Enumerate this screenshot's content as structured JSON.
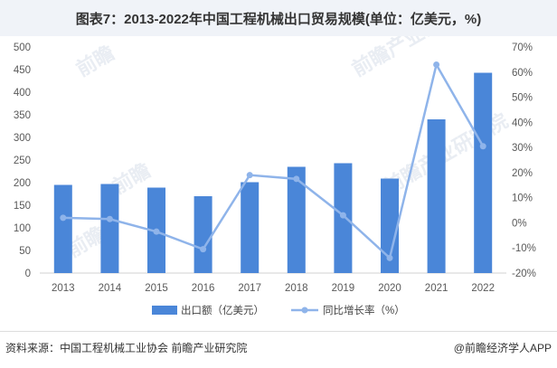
{
  "title": "图表7：2013-2022年中国工程机械出口贸易规模(单位：亿美元，%)",
  "source_text": "资料来源：中国工程机械工业协会 前瞻产业研究院",
  "brand_text": "@前瞻经济学人APP",
  "watermarks": [
    "前瞻",
    "前瞻产业研究院"
  ],
  "colors": {
    "bar": "#4a86d8",
    "line": "#8fb4ea",
    "axis": "#d0d0d0"
  },
  "chart_data": {
    "type": "bar",
    "categories": [
      "2013",
      "2014",
      "2015",
      "2016",
      "2017",
      "2018",
      "2019",
      "2020",
      "2021",
      "2022"
    ],
    "series": [
      {
        "name": "出口额（亿美元）",
        "type": "bar",
        "axis": "left",
        "values": [
          195,
          197,
          189,
          170,
          201,
          235,
          243,
          209,
          340,
          443
        ]
      },
      {
        "name": "同比增长率（%）",
        "type": "line",
        "axis": "right",
        "values": [
          2.0,
          1.5,
          -3.5,
          -10.5,
          19.0,
          17.5,
          3.0,
          -14.0,
          63.0,
          30.5
        ]
      }
    ],
    "y_left": {
      "min": 0,
      "max": 500,
      "step": 50
    },
    "y_right": {
      "min": -20,
      "max": 70,
      "step": 10,
      "suffix": "%"
    },
    "legend_position": "bottom",
    "grid": false
  }
}
